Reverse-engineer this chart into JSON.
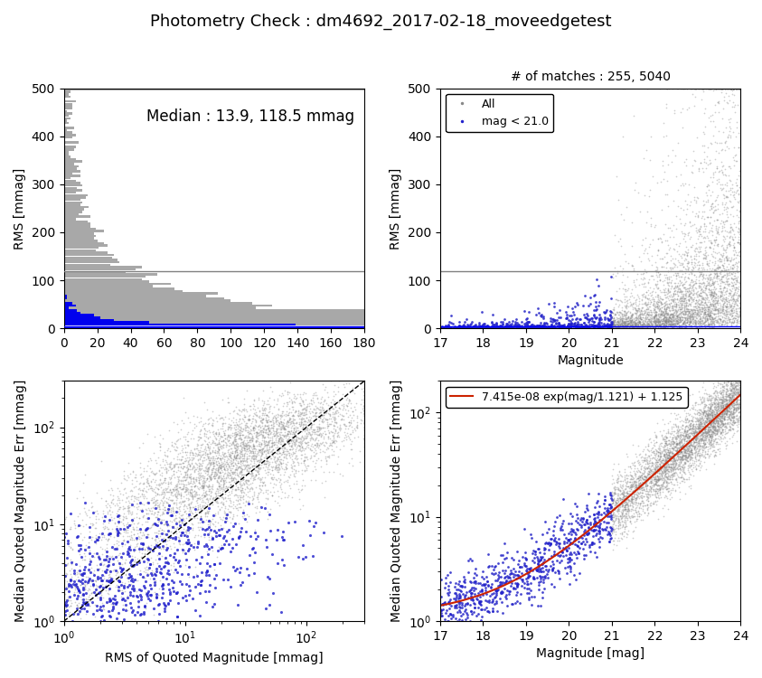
{
  "title": "Photometry Check : dm4692_2017-02-18_moveedgetest",
  "title_fontsize": 13,
  "top_left": {
    "ylabel": "RMS [mmag]",
    "xlim": [
      0,
      180
    ],
    "ylim": [
      0,
      500
    ],
    "hline_gray": 118.5,
    "hline_blue": 5,
    "annotation": "Median : 13.9, 118.5 mmag",
    "annotation_fontsize": 12
  },
  "top_right": {
    "title": "# of matches : 255, 5040",
    "xlabel": "Magnitude",
    "ylabel": "RMS [mmag]",
    "xlim": [
      17,
      24
    ],
    "ylim": [
      0,
      500
    ],
    "hline_gray": 118.5,
    "hline_blue": 5,
    "legend_all": "All",
    "legend_bright": "mag < 21.0"
  },
  "bottom_left": {
    "xlabel": "RMS of Quoted Magnitude [mmag]",
    "ylabel": "Median Quoted Magnitude Err [mmag]",
    "xlim_log": [
      1,
      300
    ],
    "ylim_log": [
      1,
      300
    ]
  },
  "bottom_right": {
    "xlabel": "Magnitude [mag]",
    "ylabel": "Median Quoted Magnitude Err [mmag]",
    "xlim": [
      17,
      24
    ],
    "ylim_log_min": 1,
    "ylim_log_max": 200,
    "fit_label": "7.415e-08 exp(mag/1.121) + 1.125",
    "fit_color": "#cc2200"
  },
  "colors": {
    "gray": "#888888",
    "blue": "#2222cc",
    "hist_gray": "#999999",
    "hist_blue": "#0000ee"
  },
  "seeds": {
    "n_all": 5040,
    "mag_min": 17.0,
    "mag_max": 24.0,
    "mag_bright_max": 21.0
  }
}
